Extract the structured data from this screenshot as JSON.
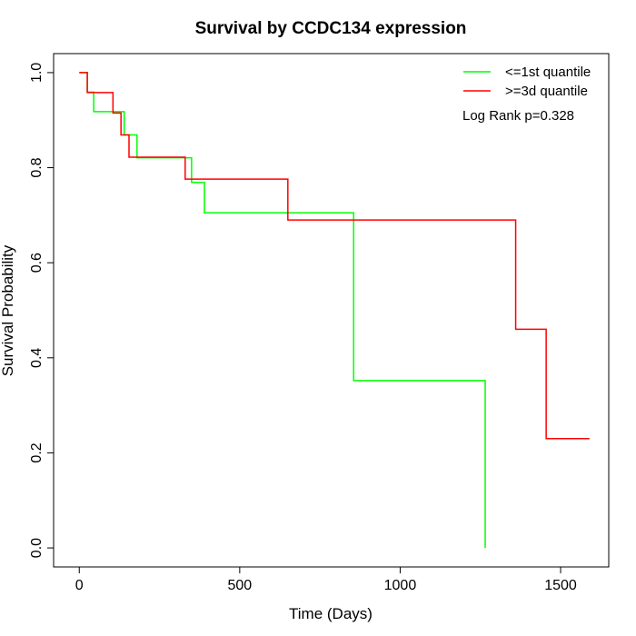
{
  "chart_data": {
    "type": "line",
    "subtype": "kaplan-meier-step",
    "title": "Survival by CCDC134 expression",
    "xlabel": "Time (Days)",
    "ylabel": "Survival Probability",
    "xlim": [
      -80,
      1650
    ],
    "ylim": [
      -0.04,
      1.04
    ],
    "xticks": [
      0,
      500,
      1000,
      1500
    ],
    "yticks": [
      0.0,
      0.2,
      0.4,
      0.6,
      0.8,
      1.0
    ],
    "xtick_labels": [
      "0",
      "500",
      "1000",
      "1500"
    ],
    "ytick_labels": [
      "0.0",
      "0.2",
      "0.4",
      "0.6",
      "0.8",
      "1.0"
    ],
    "grid": false,
    "legend_position": "top-right",
    "annotation": "Log Rank p=0.328",
    "series": [
      {
        "name": "<=1st quantile",
        "color": "#00ff00",
        "times": [
          0,
          25,
          45,
          140,
          180,
          350,
          390,
          855,
          1265
        ],
        "survival": [
          1.0,
          0.959,
          0.918,
          0.869,
          0.821,
          0.769,
          0.705,
          0.352,
          0.0
        ],
        "end_time": 1265
      },
      {
        "name": ">=3d quantile",
        "color": "#ff0000",
        "times": [
          0,
          25,
          105,
          130,
          155,
          330,
          650,
          1360,
          1455
        ],
        "survival": [
          1.0,
          0.958,
          0.915,
          0.869,
          0.822,
          0.776,
          0.69,
          0.46,
          0.23
        ],
        "end_time": 1590
      }
    ]
  }
}
